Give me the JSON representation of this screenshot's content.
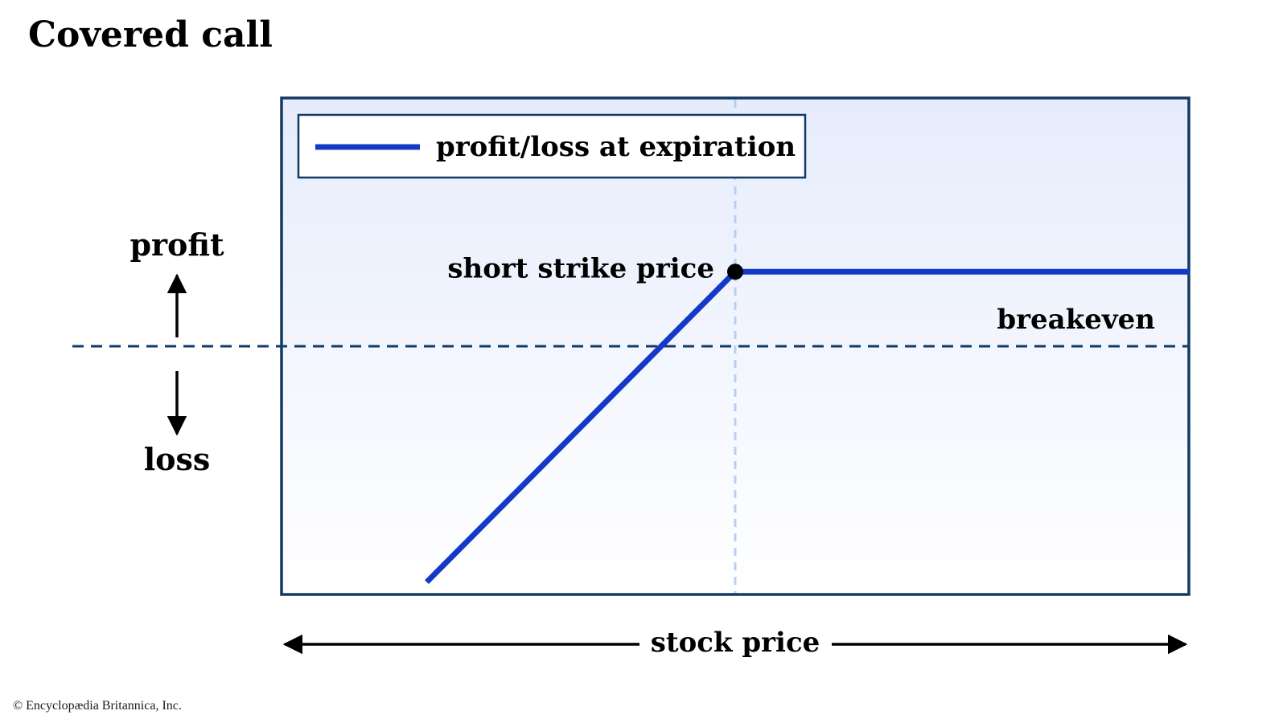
{
  "title": "Covered call",
  "credit": "© Encyclopædia Britannica, Inc.",
  "colors": {
    "payoff_line": "#1438c8",
    "frame": "#123a62",
    "breakeven_line": "#123a62",
    "strike_guide": "#b8cff5",
    "background_top": "#e6ecfc",
    "background_bottom": "#ffffff",
    "text": "#000000"
  },
  "chart_data": {
    "type": "line",
    "title": "Covered call",
    "xlabel": "stock price",
    "ylabel": "",
    "y_up_label": "profit",
    "y_down_label": "loss",
    "xlim": [
      0,
      1
    ],
    "ylim": [
      -1,
      1
    ],
    "grid": false,
    "legend_position": "top-left",
    "legend": [
      "profit/loss at expiration"
    ],
    "series": [
      {
        "name": "profit/loss at expiration",
        "x": [
          0.16,
          0.5,
          1.0
        ],
        "y": [
          -0.95,
          0.3,
          0.3
        ]
      }
    ],
    "breakeven": {
      "label": "breakeven",
      "y": 0
    },
    "strike": {
      "label": "short strike price",
      "x": 0.5,
      "y": 0.3
    }
  }
}
